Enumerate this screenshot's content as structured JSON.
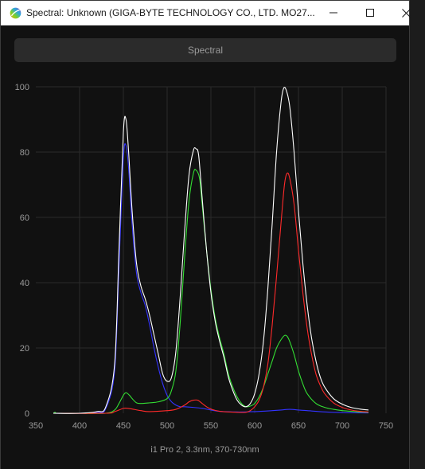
{
  "window": {
    "title": "Spectral: Unknown (GIGA-BYTE TECHNOLOGY CO., LTD. MO27...",
    "minimize_icon": "minimize-icon",
    "maximize_icon": "maximize-icon",
    "close_icon": "close-icon"
  },
  "toolbar": {
    "tab_label": "Spectral"
  },
  "caption": "i1 Pro 2, 3.3nm, 370-730nm",
  "colors": {
    "background": "#111111",
    "grid": "#2a2a2a",
    "axis_text": "#9a9a9a",
    "white_series": "#ffffff",
    "red_series": "#ff2a2a",
    "green_series": "#33dd33",
    "blue_series": "#3333ff"
  },
  "chart_data": {
    "type": "line",
    "xlim": [
      350,
      750
    ],
    "ylim": [
      0,
      100
    ],
    "xticks": [
      350,
      400,
      450,
      500,
      550,
      600,
      650,
      700,
      750
    ],
    "yticks": [
      0,
      20,
      40,
      60,
      80,
      100
    ],
    "grid": true,
    "series": [
      {
        "color": "#ffffff",
        "x": [
          370,
          400,
          420,
          430,
          440,
          445,
          450,
          453,
          456,
          460,
          465,
          470,
          475,
          480,
          485,
          490,
          495,
          500,
          505,
          510,
          515,
          520,
          525,
          530,
          533,
          536,
          540,
          545,
          550,
          555,
          560,
          565,
          570,
          575,
          580,
          585,
          590,
          595,
          600,
          605,
          610,
          615,
          620,
          625,
          630,
          633,
          636,
          640,
          645,
          650,
          655,
          660,
          665,
          670,
          675,
          680,
          690,
          700,
          710,
          720,
          730
        ],
        "y": [
          0,
          0,
          0.5,
          2,
          15,
          50,
          86,
          90,
          80,
          62,
          46,
          39,
          35,
          30,
          24,
          18,
          12,
          9.8,
          11,
          19,
          36,
          56,
          73,
          80.5,
          81,
          79,
          66,
          50,
          37,
          28,
          22,
          17,
          11,
          7,
          4,
          2.5,
          2,
          3,
          6,
          12,
          22,
          38,
          58,
          80,
          95,
          99.5,
          99,
          94,
          80,
          62,
          46,
          33,
          23,
          16,
          11,
          8,
          4.5,
          2.8,
          1.8,
          1.3,
          1
        ]
      },
      {
        "color": "#ff2a2a",
        "x": [
          370,
          430,
          440,
          450,
          455,
          460,
          470,
          480,
          500,
          510,
          520,
          525,
          530,
          535,
          540,
          545,
          550,
          560,
          580,
          590,
          595,
          600,
          605,
          610,
          615,
          620,
          625,
          630,
          634,
          637,
          640,
          645,
          650,
          655,
          660,
          665,
          670,
          675,
          680,
          690,
          700,
          710,
          720,
          730
        ],
        "y": [
          0,
          0,
          0.5,
          1.5,
          1.5,
          1.3,
          0.8,
          0.5,
          0.8,
          1.2,
          2.5,
          3.5,
          4,
          4,
          3,
          2,
          1.3,
          0.6,
          0.3,
          0.3,
          0.8,
          2,
          4,
          8,
          15,
          27,
          42,
          58,
          70,
          73.5,
          72,
          64,
          50,
          37,
          26,
          18,
          12,
          8.5,
          6,
          3.2,
          1.8,
          1,
          0.6,
          0.4
        ]
      },
      {
        "color": "#33dd33",
        "x": [
          370,
          372,
          375,
          400,
          430,
          440,
          445,
          450,
          453,
          457,
          460,
          465,
          470,
          480,
          490,
          500,
          505,
          510,
          515,
          520,
          525,
          530,
          533,
          537,
          540,
          545,
          550,
          555,
          560,
          565,
          570,
          575,
          580,
          585,
          590,
          595,
          600,
          605,
          610,
          615,
          620,
          625,
          630,
          634,
          637,
          640,
          645,
          650,
          655,
          660,
          670,
          680,
          690,
          700,
          710,
          720,
          730
        ],
        "y": [
          0,
          0.3,
          0,
          0,
          0,
          1,
          3,
          5.5,
          6.3,
          5.5,
          4.5,
          3.2,
          3,
          3.2,
          3.5,
          4.5,
          7,
          13,
          28,
          48,
          65,
          73.5,
          74.5,
          72,
          64,
          50,
          38,
          29,
          23,
          18,
          12,
          8,
          5,
          3,
          2,
          2.2,
          3,
          5,
          8,
          12,
          16,
          20,
          22.5,
          23.8,
          23.6,
          22,
          18,
          13,
          9,
          6,
          3,
          1.8,
          1.2,
          0.8,
          0.6,
          0.4,
          0.3
        ]
      },
      {
        "color": "#3333ff",
        "x": [
          370,
          400,
          420,
          430,
          440,
          445,
          450,
          453,
          456,
          460,
          465,
          470,
          475,
          480,
          485,
          490,
          495,
          500,
          505,
          510,
          515,
          520,
          530,
          540,
          550,
          560,
          580,
          600,
          620,
          630,
          640,
          650,
          660,
          680,
          700,
          730
        ],
        "y": [
          0,
          0,
          0.3,
          1.5,
          13,
          45,
          78,
          82,
          75,
          58,
          43,
          37,
          33,
          27,
          20,
          14,
          9,
          5.5,
          3.5,
          2.5,
          2,
          2,
          1.8,
          1.5,
          1,
          0.6,
          0.4,
          0.5,
          0.8,
          1,
          1.2,
          1,
          0.8,
          0.4,
          0.2,
          0.1
        ]
      }
    ]
  }
}
